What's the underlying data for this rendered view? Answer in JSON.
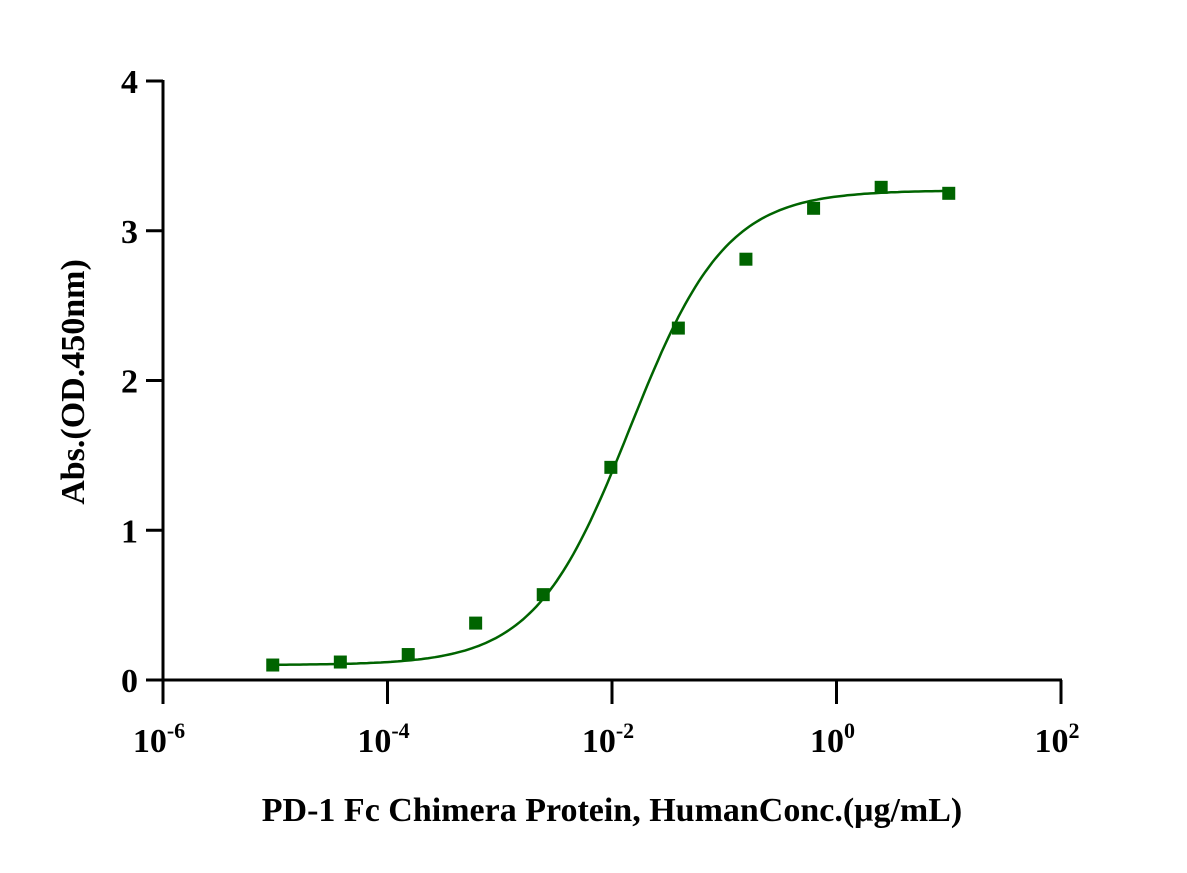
{
  "chart_data": {
    "type": "scatter",
    "title": "",
    "xlabel": "PD-1 Fc Chimera Protein, HumanConc.(μg/mL)",
    "ylabel": "Abs.(OD.450nm)",
    "xscale": "log",
    "xlim": [
      1e-06,
      100
    ],
    "ylim": [
      0,
      4
    ],
    "x_ticks": [
      {
        "base": "10",
        "exp": "-6",
        "value": -6
      },
      {
        "base": "10",
        "exp": "-4",
        "value": -4
      },
      {
        "base": "10",
        "exp": "-2",
        "value": -2
      },
      {
        "base": "10",
        "exp": "0",
        "value": 0
      },
      {
        "base": "10",
        "exp": "2",
        "value": 2
      }
    ],
    "y_ticks": [
      "0",
      "1",
      "2",
      "3",
      "4"
    ],
    "grid": false,
    "color": "#006400",
    "series": [
      {
        "name": "PD-1 Fc Chimera Protein, Human",
        "x": [
          9.5e-06,
          3.8e-05,
          0.000153,
          0.00061,
          0.00244,
          0.00977,
          0.039,
          0.156,
          0.625,
          2.5,
          10
        ],
        "y": [
          0.1,
          0.12,
          0.17,
          0.38,
          0.57,
          1.42,
          2.35,
          2.81,
          3.15,
          3.29,
          3.25
        ]
      }
    ],
    "fit": {
      "model": "4PL",
      "bottom": 0.1,
      "top": 3.27,
      "ec50": 0.0145,
      "hill": 1.02
    }
  }
}
